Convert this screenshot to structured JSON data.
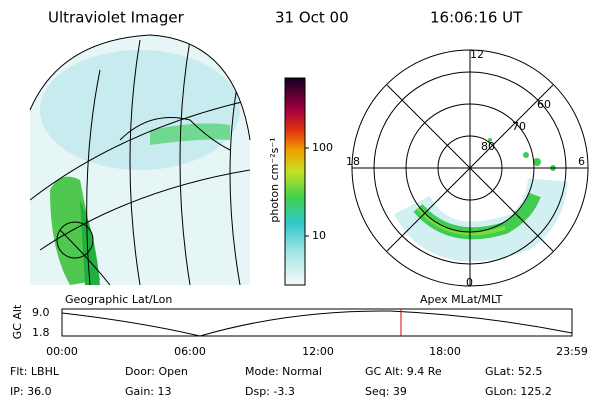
{
  "header": {
    "instrument": "Ultraviolet Imager",
    "date": "31 Oct 00",
    "time": "16:06:16 UT"
  },
  "colorbar": {
    "unit": "photon cm⁻²s⁻¹",
    "ticks": [
      "100",
      "10"
    ]
  },
  "polar_plot": {
    "mlt_labels": {
      "top": "12",
      "left": "18",
      "right": "6",
      "bottom": "0"
    },
    "lat_labels": [
      "80",
      "70",
      "60"
    ]
  },
  "timeline": {
    "left_label": "Geographic Lat/Lon",
    "right_label": "Apex MLat/MLT",
    "axis_label": "GC Alt",
    "y_labels": [
      "9.0",
      "1.8"
    ],
    "times": [
      "00:00",
      "06:00",
      "12:00",
      "18:00",
      "23:59"
    ]
  },
  "footer": {
    "rows": [
      [
        "Flt: LBHL",
        "Door: Open",
        "Mode: Normal",
        "GC Alt: 9.4 Re",
        "GLat: 52.5"
      ],
      [
        "IP: 36.0",
        "Gain: 13",
        "Dsp: -3.3",
        "Seq: 39",
        "GLon: 125.2"
      ]
    ]
  }
}
